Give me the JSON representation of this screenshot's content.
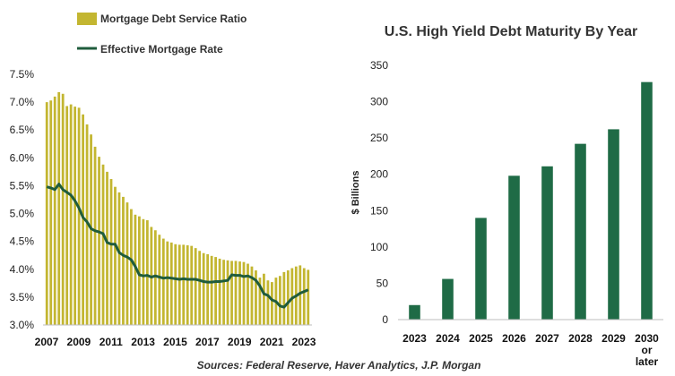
{
  "source_note": "Sources: Federal Reserve, Haver Analytics, J.P. Morgan",
  "chart_data": [
    {
      "type": "bar",
      "title": "",
      "legend": [
        "Mortgage Debt Service Ratio",
        "Effective Mortgage Rate"
      ],
      "legend_position": "top-left",
      "colors": {
        "bars": "#c3b631",
        "line": "#1f5c3c"
      },
      "x_tick_labels": [
        "2007",
        "2009",
        "2011",
        "2013",
        "2015",
        "2017",
        "2019",
        "2021",
        "2023"
      ],
      "y_tick_labels": [
        "3.0%",
        "3.5%",
        "4.0%",
        "4.5%",
        "5.0%",
        "5.5%",
        "6.0%",
        "6.5%",
        "7.0%",
        "7.5%"
      ],
      "ylim": [
        3.0,
        7.5
      ],
      "x_range": [
        2007.0,
        2023.5
      ],
      "grid": false,
      "series": [
        {
          "name": "Mortgage Debt Service Ratio",
          "type": "bar",
          "x": [
            2007.0,
            2007.25,
            2007.5,
            2007.75,
            2008.0,
            2008.25,
            2008.5,
            2008.75,
            2009.0,
            2009.25,
            2009.5,
            2009.75,
            2010.0,
            2010.25,
            2010.5,
            2010.75,
            2011.0,
            2011.25,
            2011.5,
            2011.75,
            2012.0,
            2012.25,
            2012.5,
            2012.75,
            2013.0,
            2013.25,
            2013.5,
            2013.75,
            2014.0,
            2014.25,
            2014.5,
            2014.75,
            2015.0,
            2015.25,
            2015.5,
            2015.75,
            2016.0,
            2016.25,
            2016.5,
            2016.75,
            2017.0,
            2017.25,
            2017.5,
            2017.75,
            2018.0,
            2018.25,
            2018.5,
            2018.75,
            2019.0,
            2019.25,
            2019.5,
            2019.75,
            2020.0,
            2020.25,
            2020.5,
            2020.75,
            2021.0,
            2021.25,
            2021.5,
            2021.75,
            2022.0,
            2022.25,
            2022.5,
            2022.75,
            2023.0,
            2023.25
          ],
          "values": [
            7.0,
            7.03,
            7.1,
            7.18,
            7.15,
            6.93,
            6.96,
            6.92,
            6.9,
            6.78,
            6.6,
            6.42,
            6.2,
            6.02,
            5.88,
            5.75,
            5.62,
            5.48,
            5.38,
            5.3,
            5.2,
            5.08,
            4.98,
            4.95,
            4.9,
            4.88,
            4.76,
            4.7,
            4.62,
            4.55,
            4.5,
            4.48,
            4.45,
            4.44,
            4.44,
            4.43,
            4.42,
            4.38,
            4.33,
            4.29,
            4.27,
            4.24,
            4.22,
            4.19,
            4.17,
            4.16,
            4.15,
            4.15,
            4.14,
            4.13,
            4.1,
            4.05,
            3.98,
            3.85,
            3.92,
            3.8,
            3.77,
            3.85,
            3.88,
            3.95,
            3.98,
            4.02,
            4.05,
            4.07,
            4.02,
            3.99
          ]
        },
        {
          "name": "Effective Mortgage Rate",
          "type": "line",
          "x": [
            2007.0,
            2007.25,
            2007.5,
            2007.75,
            2008.0,
            2008.25,
            2008.5,
            2008.75,
            2009.0,
            2009.25,
            2009.5,
            2009.75,
            2010.0,
            2010.25,
            2010.5,
            2010.75,
            2011.0,
            2011.25,
            2011.5,
            2011.75,
            2012.0,
            2012.25,
            2012.5,
            2012.75,
            2013.0,
            2013.25,
            2013.5,
            2013.75,
            2014.0,
            2014.25,
            2014.5,
            2014.75,
            2015.0,
            2015.25,
            2015.5,
            2015.75,
            2016.0,
            2016.25,
            2016.5,
            2016.75,
            2017.0,
            2017.25,
            2017.5,
            2017.75,
            2018.0,
            2018.25,
            2018.5,
            2018.75,
            2019.0,
            2019.25,
            2019.5,
            2019.75,
            2020.0,
            2020.25,
            2020.5,
            2020.75,
            2021.0,
            2021.25,
            2021.5,
            2021.75,
            2022.0,
            2022.25,
            2022.5,
            2022.75,
            2023.0,
            2023.25
          ],
          "values": [
            5.48,
            5.46,
            5.43,
            5.53,
            5.43,
            5.38,
            5.33,
            5.23,
            5.1,
            4.93,
            4.85,
            4.73,
            4.69,
            4.67,
            4.64,
            4.48,
            4.45,
            4.45,
            4.3,
            4.25,
            4.22,
            4.17,
            4.05,
            3.9,
            3.88,
            3.89,
            3.86,
            3.88,
            3.86,
            3.84,
            3.85,
            3.84,
            3.83,
            3.82,
            3.83,
            3.82,
            3.82,
            3.82,
            3.8,
            3.78,
            3.77,
            3.77,
            3.78,
            3.78,
            3.79,
            3.8,
            3.9,
            3.89,
            3.89,
            3.87,
            3.88,
            3.85,
            3.8,
            3.7,
            3.56,
            3.53,
            3.45,
            3.42,
            3.34,
            3.32,
            3.4,
            3.48,
            3.52,
            3.57,
            3.6,
            3.63
          ]
        }
      ]
    },
    {
      "type": "bar",
      "title": "U.S. High Yield Debt Maturity  By Year",
      "ylabel": "$ Billions",
      "xlabel": "",
      "colors": {
        "bars": "#1f6b46"
      },
      "categories": [
        "2023",
        "2024",
        "2025",
        "2026",
        "2027",
        "2028",
        "2029",
        "2030 or later"
      ],
      "category_lines": [
        [
          "2023"
        ],
        [
          "2024"
        ],
        [
          "2025"
        ],
        [
          "2026"
        ],
        [
          "2027"
        ],
        [
          "2028"
        ],
        [
          "2029"
        ],
        [
          "2030",
          "or",
          "later"
        ]
      ],
      "values": [
        20,
        56,
        140,
        198,
        211,
        242,
        262,
        327
      ],
      "y_tick_labels": [
        "0",
        "50",
        "100",
        "150",
        "200",
        "250",
        "300",
        "350"
      ],
      "ylim": [
        0,
        350
      ],
      "grid": false
    }
  ]
}
